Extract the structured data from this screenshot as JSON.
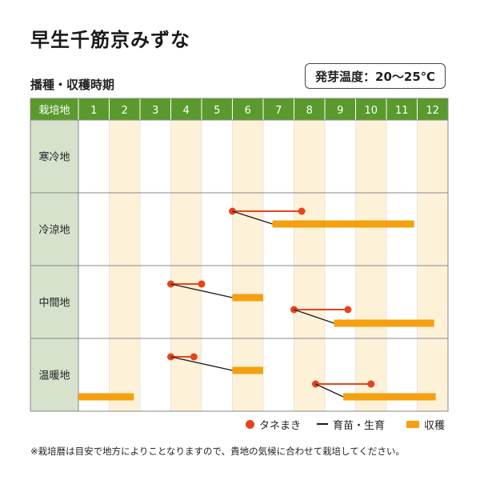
{
  "title": "早生千筋京みずな",
  "subtitle": "播種・収穫時期",
  "temperature": "発芽温度：20〜25℃",
  "header": {
    "region_label": "栽培地",
    "months": [
      "1",
      "2",
      "3",
      "4",
      "5",
      "6",
      "7",
      "8",
      "9",
      "10",
      "11",
      "12"
    ]
  },
  "regions": [
    {
      "name": "寒冷地",
      "rows": []
    },
    {
      "name": "冷涼地",
      "rows": [
        {
          "sow_start": 6.0,
          "sow_end": 8.25,
          "harvest_start": 7.3,
          "harvest_end": 11.9
        }
      ]
    },
    {
      "name": "中間地",
      "rows": [
        {
          "sow_start": 4.0,
          "sow_end": 5.0,
          "harvest_start": 6.0,
          "harvest_end": 7.0
        },
        {
          "sow_start": 8.0,
          "sow_end": 9.75,
          "harvest_start": 9.3,
          "harvest_end": 12.55
        }
      ]
    },
    {
      "name": "温暖地",
      "rows": [
        {
          "sow_start": 4.0,
          "sow_end": 4.75,
          "harvest_start": 6.0,
          "harvest_end": 7.0,
          "harvest_end_row": 0
        },
        {
          "sow_start": 8.7,
          "sow_end": 10.5,
          "harvest_start": 9.6,
          "harvest_end": 12.6
        },
        {
          "harvest_only": true,
          "harvest_start": 1.0,
          "harvest_end": 2.8
        }
      ]
    }
  ],
  "legend": {
    "sowing": "タネまき",
    "seedling": "育苗・生育",
    "harvest": "収穫"
  },
  "note": "※栽培暦は目安で地方によりことなりますので、貴地の気候に合わせて栽培してください。",
  "colors": {
    "header_green": "#5a9a2c",
    "region_col": "#d6e2cc",
    "stripe": "#fdf1d8",
    "sow_dot": "#e8431a",
    "harvest_bar": "#f5a00f",
    "grid_border": "#888888"
  }
}
